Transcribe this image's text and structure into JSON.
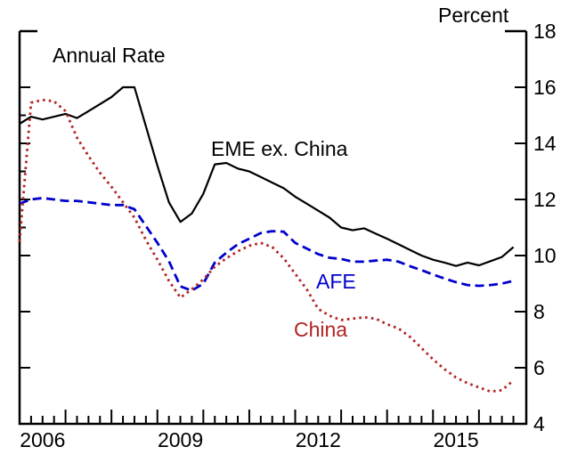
{
  "chart_data": {
    "type": "line",
    "title": "Annual Rate",
    "ylabel": "Percent",
    "xlabel": "",
    "x_start": 2006.0,
    "x_step": 0.25,
    "xlim": [
      2006.0,
      2017.03
    ],
    "ylim": [
      4,
      18
    ],
    "grid": false,
    "legend_position": "inline-annotations",
    "y_axis": {
      "side_labels": "right",
      "major_ticks": [
        6,
        8,
        10,
        12,
        14,
        16
      ],
      "minor_ticks_left": [
        11,
        13,
        15
      ],
      "tick_labels": [
        18,
        16,
        14,
        12,
        10,
        8,
        6,
        4
      ]
    },
    "x_axis": {
      "year_ticks": [
        2007,
        2008,
        2009,
        2010,
        2011,
        2012,
        2013,
        2014,
        2015,
        2016
      ],
      "quarter_ticks": true,
      "tick_labels": [
        2006,
        2009,
        2012,
        2015
      ]
    },
    "series": [
      {
        "name": "EME ex. China",
        "color": "#000000",
        "style": "solid",
        "values": [
          14.7,
          14.95,
          14.85,
          14.95,
          15.05,
          14.9,
          15.15,
          15.4,
          15.65,
          16.0,
          16.0,
          14.6,
          13.2,
          11.9,
          11.2,
          11.5,
          12.2,
          13.25,
          13.3,
          13.1,
          13.0,
          12.8,
          12.6,
          12.4,
          12.1,
          11.85,
          11.6,
          11.35,
          11.0,
          10.9,
          10.97,
          10.78,
          10.6,
          10.4,
          10.2,
          10.0,
          9.85,
          9.75,
          9.63,
          9.75,
          9.65,
          9.8,
          9.95,
          10.3
        ]
      },
      {
        "name": "AFE",
        "color": "#0000cc",
        "style": "dashed",
        "values": [
          11.85,
          12.0,
          12.05,
          12.0,
          11.95,
          11.95,
          11.9,
          11.85,
          11.8,
          11.8,
          11.65,
          11.05,
          10.45,
          9.8,
          8.9,
          8.75,
          9.0,
          9.75,
          10.1,
          10.4,
          10.6,
          10.8,
          10.87,
          10.85,
          10.45,
          10.25,
          10.05,
          9.92,
          9.88,
          9.78,
          9.78,
          9.82,
          9.85,
          9.78,
          9.62,
          9.48,
          9.32,
          9.18,
          9.05,
          8.95,
          8.92,
          8.95,
          9.0,
          9.1
        ]
      },
      {
        "name": "China",
        "color": "#b22222",
        "style": "dotted",
        "values": [
          10.5,
          15.45,
          15.55,
          15.5,
          15.15,
          14.2,
          13.55,
          12.95,
          12.45,
          11.9,
          11.35,
          10.55,
          9.85,
          9.1,
          8.5,
          8.8,
          9.15,
          9.6,
          9.9,
          10.15,
          10.35,
          10.45,
          10.3,
          9.9,
          9.35,
          8.8,
          8.1,
          7.85,
          7.7,
          7.75,
          7.8,
          7.75,
          7.55,
          7.4,
          7.1,
          6.7,
          6.3,
          5.95,
          5.65,
          5.45,
          5.3,
          5.15,
          5.2,
          5.55
        ]
      }
    ]
  }
}
